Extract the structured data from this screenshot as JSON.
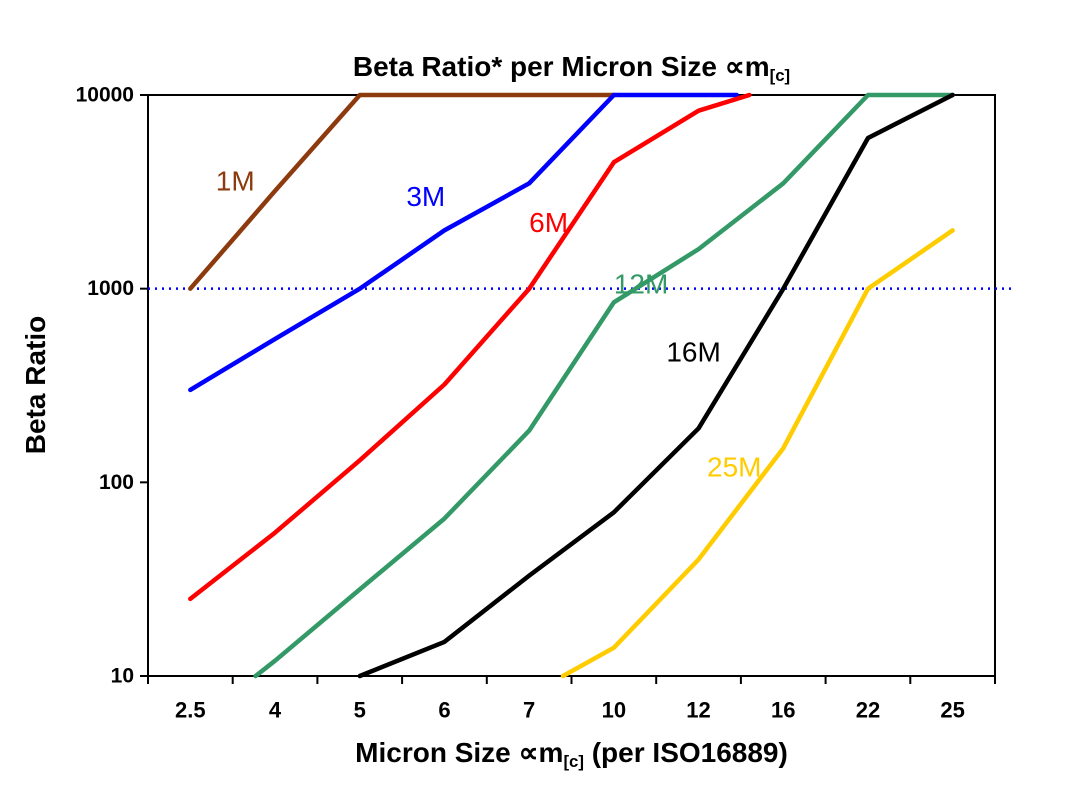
{
  "title": {
    "pre": "Beta Ratio* per Micron Size ∝m",
    "sub": "[c]"
  },
  "axes": {
    "y_title": "Beta Ratio",
    "x_title_pre": "Micron Size ∝m",
    "x_title_sub": "[c]",
    "x_title_post": " (per ISO16889)"
  },
  "chart_data": {
    "type": "line",
    "title": "Beta Ratio* per Micron Size ∝m[c]",
    "xlabel": "Micron Size ∝m[c] (per ISO16889)",
    "ylabel": "Beta Ratio",
    "x_categories": [
      "2.5",
      "4",
      "5",
      "6",
      "7",
      "10",
      "12",
      "16",
      "22",
      "25"
    ],
    "x_axis_type": "categorical",
    "y_scale": "log",
    "ylim": [
      10,
      10000
    ],
    "y_ticks": [
      10,
      100,
      1000,
      10000
    ],
    "grid": false,
    "legend": "inline-labels",
    "points_format": "[category_index, beta_ratio]",
    "reference_line": {
      "y": 1000,
      "color": "#0000ff",
      "style": "dotted"
    },
    "series": [
      {
        "name": "1M",
        "color": "#8c3a0e",
        "points": [
          [
            0,
            1000
          ],
          [
            1,
            3200
          ],
          [
            2,
            10000
          ],
          [
            5,
            10000
          ]
        ],
        "label": {
          "text": "1M",
          "x": 0.3,
          "y": 3600
        }
      },
      {
        "name": "3M",
        "color": "#0000ff",
        "points": [
          [
            0,
            300
          ],
          [
            1,
            550
          ],
          [
            2,
            1000
          ],
          [
            3,
            2000
          ],
          [
            4,
            3500
          ],
          [
            5,
            10000
          ],
          [
            6.45,
            10000
          ]
        ],
        "label": {
          "text": "3M",
          "x": 2.55,
          "y": 3000
        }
      },
      {
        "name": "6M",
        "color": "#ff0000",
        "points": [
          [
            0,
            25
          ],
          [
            1,
            55
          ],
          [
            2,
            130
          ],
          [
            3,
            320
          ],
          [
            4,
            1000
          ],
          [
            5,
            4500
          ],
          [
            6,
            8300
          ],
          [
            6.6,
            10000
          ]
        ],
        "label": {
          "text": "6M",
          "x": 4.0,
          "y": 2200
        }
      },
      {
        "name": "12M",
        "color": "#339966",
        "points": [
          [
            0.77,
            10
          ],
          [
            1,
            12
          ],
          [
            2,
            28
          ],
          [
            3,
            65
          ],
          [
            4,
            185
          ],
          [
            5,
            850
          ],
          [
            6,
            1600
          ],
          [
            7,
            3500
          ],
          [
            8,
            10000
          ],
          [
            9,
            10000
          ]
        ],
        "label": {
          "text": "12M",
          "x": 5.0,
          "y": 1060
        }
      },
      {
        "name": "16M",
        "color": "#000000",
        "points": [
          [
            2,
            10
          ],
          [
            3,
            15
          ],
          [
            4,
            33
          ],
          [
            5,
            70
          ],
          [
            6,
            190
          ],
          [
            7,
            1000
          ],
          [
            8,
            6000
          ],
          [
            9,
            10000
          ]
        ],
        "label": {
          "text": "16M",
          "x": 5.62,
          "y": 470
        }
      },
      {
        "name": "25M",
        "color": "#ffcc00",
        "points": [
          [
            4.4,
            10
          ],
          [
            5,
            14
          ],
          [
            6,
            40
          ],
          [
            7,
            150
          ],
          [
            8,
            1000
          ],
          [
            9,
            2000
          ]
        ],
        "label": {
          "text": "25M",
          "x": 6.1,
          "y": 120
        }
      }
    ]
  }
}
